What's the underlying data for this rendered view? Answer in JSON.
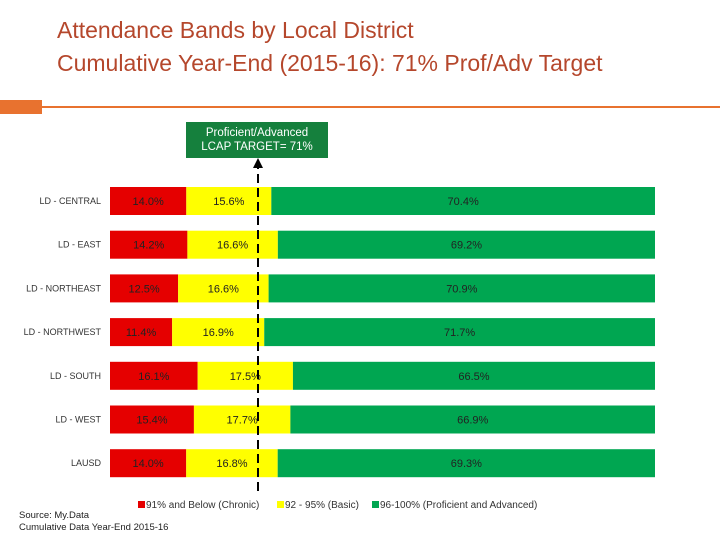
{
  "title": {
    "line1": "Attendance Bands by Local District",
    "line2": "Cumulative Year-End (2015-16): 71% Prof/Adv Target"
  },
  "target_box": {
    "line1": "Proficient/Advanced",
    "line2": "LCAP TARGET= 71%"
  },
  "colors": {
    "title": "#b5472c",
    "accent": "#e8722f",
    "chronic": "#e50000",
    "basic": "#ffff00",
    "proficient": "#00a651",
    "target_box": "#15803d"
  },
  "source": {
    "line1": "Source: My.Data",
    "line2": "Cumulative Data Year-End 2015-16"
  },
  "chart_data": {
    "type": "bar",
    "orientation": "horizontal",
    "stacked": true,
    "percent": true,
    "xlim": [
      0,
      100
    ],
    "target": 71,
    "categories": [
      "LD - CENTRAL",
      "LD - EAST",
      "LD - NORTHEAST",
      "LD - NORTHWEST",
      "LD - SOUTH",
      "LD - WEST",
      "LAUSD"
    ],
    "series": [
      {
        "name": "91% and Below (Chronic)",
        "color": "#e50000",
        "values": [
          14.0,
          14.2,
          12.5,
          11.4,
          16.1,
          15.4,
          14.0
        ],
        "labels": [
          "14.0%",
          "14.2%",
          "12.5%",
          "11.4%",
          "16.1%",
          "15.4%",
          "14.0%"
        ]
      },
      {
        "name": "92 - 95% (Basic)",
        "color": "#ffff00",
        "values": [
          15.6,
          16.6,
          16.6,
          16.9,
          17.5,
          17.7,
          16.8
        ],
        "labels": [
          "15.6%",
          "16.6%",
          "16.6%",
          "16.9%",
          "17.5%",
          "17.7%",
          "16.8%"
        ]
      },
      {
        "name": "96-100% (Proficient and Advanced)",
        "color": "#00a651",
        "values": [
          70.4,
          69.2,
          70.9,
          71.7,
          66.5,
          66.9,
          69.3
        ],
        "labels": [
          "70.4%",
          "69.2%",
          "70.9%",
          "71.7%",
          "66.5%",
          "66.9%",
          "69.3%"
        ]
      }
    ],
    "legend_position": "bottom"
  }
}
